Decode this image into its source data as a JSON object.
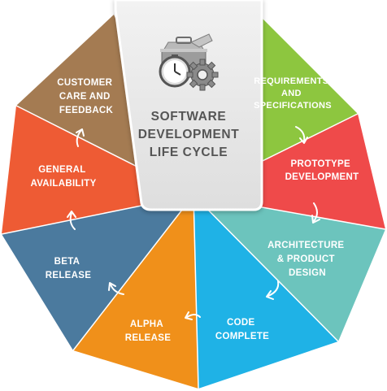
{
  "center": {
    "title_lines": [
      "SOFTWARE",
      "DEVELOPMENT",
      "LIFE CYCLE"
    ],
    "icon": "toolbox-clock-gear-icon"
  },
  "segments": [
    {
      "id": "requirements",
      "lines": [
        "REQUIREMENTS",
        "AND",
        "SPECIFICATIONS"
      ],
      "color": "#8dc63f"
    },
    {
      "id": "prototype",
      "lines": [
        "PROTOTYPE",
        "DEVELOPMENT"
      ],
      "color": "#ef4a4a"
    },
    {
      "id": "architecture",
      "lines": [
        "ARCHITECTURE",
        "& PRODUCT",
        "DESIGN"
      ],
      "color": "#6cc4bd"
    },
    {
      "id": "code",
      "lines": [
        "CODE",
        "COMPLETE"
      ],
      "color": "#1fb2e6"
    },
    {
      "id": "alpha",
      "lines": [
        "ALPHA",
        "RELEASE"
      ],
      "color": "#f0901a"
    },
    {
      "id": "beta",
      "lines": [
        "BETA",
        "RELEASE"
      ],
      "color": "#4b7a9e"
    },
    {
      "id": "general",
      "lines": [
        "GENERAL",
        "AVAILABILITY"
      ],
      "color": "#ee5b34"
    },
    {
      "id": "customer",
      "lines": [
        "CUSTOMER",
        "CARE AND",
        "FEEDBACK"
      ],
      "color": "#a47b52"
    }
  ],
  "arrow_icon": "curved-arrow-icon",
  "colors": {
    "center_fill": "#e9e9e9",
    "center_text": "#555555",
    "background": "#ffffff"
  }
}
